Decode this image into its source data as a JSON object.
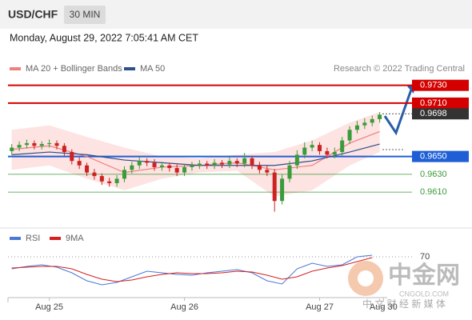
{
  "header": {
    "symbol": "USD/CHF",
    "timeframe": "30 MIN",
    "datetime": "Monday, August 29, 2022 7:05:41 AM CET",
    "source": "Research © 2022 Trading Central"
  },
  "watermark": {
    "name": "中金网",
    "site": "CNGOLD.COM",
    "slogan": "中 文 财 经 新 媒 体"
  },
  "chart_data": [
    {
      "type": "candlestick",
      "up_color": "#3a9b3a",
      "down_color": "#cc2222",
      "open": [
        0.9656,
        0.966,
        0.9663,
        0.9665,
        0.9662,
        0.9664,
        0.9665,
        0.9662,
        0.9655,
        0.9645,
        0.964,
        0.9632,
        0.9628,
        0.9622,
        0.962,
        0.9625,
        0.9635,
        0.964,
        0.9645,
        0.9643,
        0.9638,
        0.964,
        0.9637,
        0.9632,
        0.9638,
        0.964,
        0.9642,
        0.964,
        0.9643,
        0.9641,
        0.9645,
        0.9642,
        0.9648,
        0.964,
        0.9635,
        0.9632,
        0.96,
        0.9625,
        0.964,
        0.9652,
        0.966,
        0.9663,
        0.9656,
        0.9652,
        0.9655,
        0.9668,
        0.968,
        0.9685,
        0.9688,
        0.9692
      ],
      "high": [
        0.9664,
        0.9667,
        0.9669,
        0.9668,
        0.9667,
        0.9669,
        0.9668,
        0.9665,
        0.9658,
        0.9649,
        0.9643,
        0.9636,
        0.9631,
        0.9626,
        0.9629,
        0.9639,
        0.9644,
        0.9649,
        0.9648,
        0.9647,
        0.9644,
        0.9643,
        0.9641,
        0.9642,
        0.9644,
        0.9646,
        0.9645,
        0.9647,
        0.9646,
        0.9649,
        0.9648,
        0.9654,
        0.9651,
        0.9644,
        0.964,
        0.9636,
        0.963,
        0.9645,
        0.9657,
        0.9666,
        0.9668,
        0.9666,
        0.966,
        0.966,
        0.9672,
        0.9684,
        0.969,
        0.9693,
        0.9696,
        0.97
      ],
      "low": [
        0.9652,
        0.9656,
        0.9659,
        0.9658,
        0.9658,
        0.966,
        0.9658,
        0.9651,
        0.9641,
        0.9636,
        0.9628,
        0.9624,
        0.9618,
        0.9616,
        0.9616,
        0.9621,
        0.9631,
        0.9636,
        0.9639,
        0.9634,
        0.9634,
        0.9633,
        0.9628,
        0.9628,
        0.9634,
        0.9636,
        0.9636,
        0.9636,
        0.9637,
        0.9637,
        0.9638,
        0.9638,
        0.9636,
        0.9631,
        0.9628,
        0.9588,
        0.9596,
        0.9621,
        0.9636,
        0.9648,
        0.9656,
        0.9652,
        0.9648,
        0.9648,
        0.9651,
        0.9664,
        0.9676,
        0.9681,
        0.9684,
        0.9688
      ],
      "close": [
        0.966,
        0.9663,
        0.9665,
        0.9662,
        0.9664,
        0.9665,
        0.9662,
        0.9655,
        0.9645,
        0.964,
        0.9632,
        0.9628,
        0.9622,
        0.962,
        0.9625,
        0.9635,
        0.964,
        0.9645,
        0.9643,
        0.9638,
        0.964,
        0.9637,
        0.9632,
        0.9638,
        0.964,
        0.9642,
        0.964,
        0.9643,
        0.9641,
        0.9645,
        0.9642,
        0.9648,
        0.964,
        0.9635,
        0.9632,
        0.96,
        0.9625,
        0.964,
        0.9652,
        0.966,
        0.9663,
        0.9656,
        0.9652,
        0.9655,
        0.9668,
        0.968,
        0.9685,
        0.9688,
        0.9692,
        0.9697
      ],
      "series": [
        {
          "name": "MA 20 + Bollinger Bands",
          "color": "#f08080",
          "band_color": "#fde3e1",
          "x": [
            0,
            5,
            10,
            15,
            20,
            25,
            30,
            35,
            40,
            45,
            49
          ],
          "values": [
            0.9658,
            0.9662,
            0.965,
            0.9632,
            0.9638,
            0.964,
            0.9643,
            0.9635,
            0.964,
            0.9665,
            0.9678
          ],
          "upper": [
            0.968,
            0.9685,
            0.9672,
            0.966,
            0.965,
            0.9648,
            0.9652,
            0.9655,
            0.9668,
            0.9688,
            0.97
          ],
          "lower": [
            0.9635,
            0.964,
            0.9625,
            0.9612,
            0.9625,
            0.9632,
            0.9634,
            0.9605,
            0.9612,
            0.964,
            0.9655
          ]
        },
        {
          "name": "MA 50",
          "color": "#2d4f8a",
          "x": [
            0,
            5,
            10,
            15,
            20,
            25,
            30,
            35,
            40,
            45,
            49
          ],
          "values": [
            0.9652,
            0.9655,
            0.9652,
            0.9646,
            0.9643,
            0.964,
            0.964,
            0.964,
            0.9645,
            0.9655,
            0.9664
          ]
        }
      ],
      "levels": [
        {
          "value": 0.973,
          "label": "0.9730",
          "color": "#d40000",
          "style": "box"
        },
        {
          "value": 0.971,
          "label": "0.9710",
          "color": "#d40000",
          "style": "box"
        },
        {
          "value": 0.9698,
          "label": "0.9698",
          "color": "#333333",
          "style": "price"
        },
        {
          "value": 0.965,
          "label": "0.9650",
          "color": "#1f5fd6",
          "style": "box"
        },
        {
          "value": 0.963,
          "label": "0.9630",
          "color": "#3c9a3c",
          "style": "text"
        },
        {
          "value": 0.961,
          "label": "0.9610",
          "color": "#3c9a3c",
          "style": "text"
        }
      ],
      "xlim": [
        -0.5,
        50
      ],
      "ylim": [
        0.9575,
        0.9745
      ],
      "xticks": [
        {
          "value": 5,
          "label": "Aug 25"
        },
        {
          "value": 23,
          "label": "Aug 26"
        },
        {
          "value": 41,
          "label": "Aug 27"
        },
        {
          "value": 49.5,
          "label": "Aug 30"
        }
      ]
    },
    {
      "type": "line",
      "xlim": [
        -0.5,
        50
      ],
      "ylim": [
        25,
        80
      ],
      "yticks": [
        70
      ],
      "x": [
        0,
        2,
        4,
        6,
        8,
        10,
        12,
        14,
        16,
        18,
        20,
        22,
        24,
        26,
        28,
        30,
        32,
        34,
        36,
        38,
        40,
        42,
        44,
        46,
        48
      ],
      "series": [
        {
          "name": "RSI",
          "color": "#4a78d8",
          "values": [
            55,
            58,
            60,
            57,
            50,
            40,
            35,
            38,
            45,
            52,
            50,
            48,
            47,
            50,
            52,
            54,
            50,
            40,
            36,
            55,
            62,
            58,
            60,
            70,
            72
          ]
        },
        {
          "name": "9MA",
          "color": "#d42020",
          "values": [
            56,
            57,
            58,
            58,
            55,
            48,
            42,
            39,
            41,
            45,
            48,
            50,
            49,
            49,
            50,
            52,
            51,
            47,
            42,
            45,
            52,
            56,
            59,
            64,
            69
          ]
        }
      ]
    }
  ]
}
